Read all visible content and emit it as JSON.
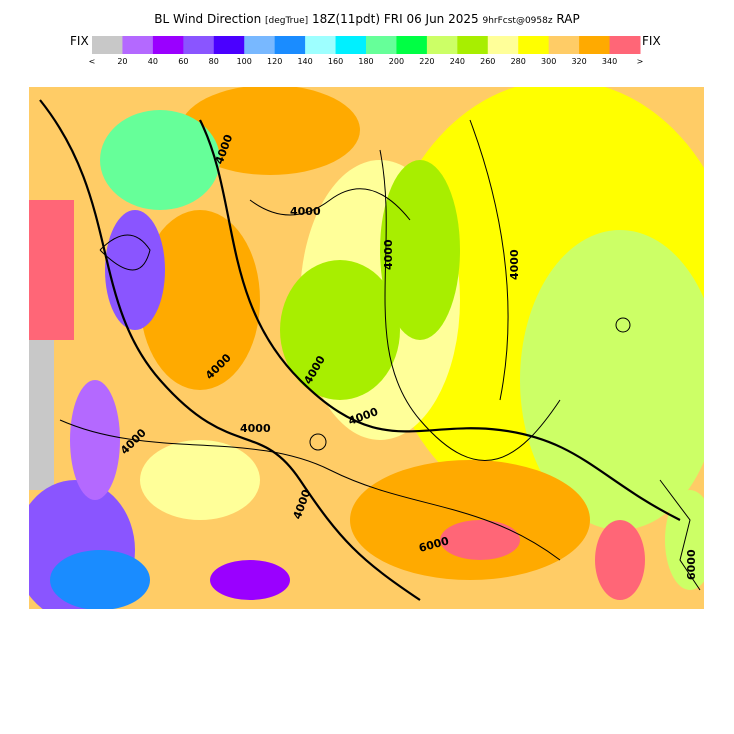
{
  "header": {
    "parameter": "BL Wind Direction",
    "units": "[degTrue]",
    "valid_time": "18Z(11pdt)",
    "date": "FRI 06 Jun 2025",
    "forecast": "9hrFcst@0958z",
    "model": "RAP"
  },
  "colorbar": {
    "left_label": "FIX",
    "right_label": "FIX",
    "low_marker": "<",
    "high_marker": ">",
    "colors": [
      "#c8c8c8",
      "#b469ff",
      "#9a00ff",
      "#8a55ff",
      "#4a00ff",
      "#78b8ff",
      "#1a8cff",
      "#9effff",
      "#00f0ff",
      "#66ff99",
      "#00ff44",
      "#ccff66",
      "#a8ee00",
      "#ffff99",
      "#ffff00",
      "#ffcc66",
      "#ffaa00",
      "#ff6677"
    ],
    "labels": [
      20,
      40,
      60,
      80,
      100,
      120,
      140,
      160,
      180,
      200,
      220,
      240,
      260,
      280,
      300,
      320,
      340
    ]
  },
  "map": {
    "contour_labels": [
      "4000",
      "4000",
      "4000",
      "4000",
      "4000",
      "4000",
      "4000",
      "4000",
      "4000",
      "6000",
      "6000",
      "4000"
    ]
  }
}
